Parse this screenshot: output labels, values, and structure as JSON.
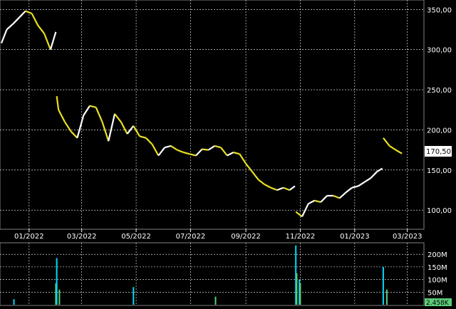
{
  "chart_data": [
    {
      "type": "line",
      "panel": "price",
      "title": "",
      "xlabel": "",
      "ylabel": "",
      "style": "candlestick",
      "colors": {
        "background": "#000000",
        "up": "#ffffff",
        "down": "#e8e020",
        "grid": "#ffffff",
        "axis": "#ffffff"
      },
      "xlim": [
        "2021-12-01",
        "2023-03-18"
      ],
      "ylim": [
        78,
        360
      ],
      "x_ticks": [
        "01/2022",
        "03/2022",
        "05/2022",
        "07/2022",
        "09/2022",
        "11/2022",
        "01/2023",
        "03/2023"
      ],
      "y_ticks": [
        "350,00",
        "300,00",
        "250,00",
        "200,00",
        "150,00",
        "100,00"
      ],
      "last_price": "170,50",
      "grid": true,
      "series": [
        {
          "x": [
            "2021-12-01",
            "2021-12-07",
            "2021-12-14",
            "2021-12-21",
            "2021-12-28",
            "2022-01-04",
            "2022-01-11",
            "2022-01-18",
            "2022-01-25",
            "2022-01-31",
            "2022-02-01",
            "2022-02-03",
            "2022-02-10",
            "2022-02-17",
            "2022-02-24",
            "2022-03-03",
            "2022-03-10",
            "2022-03-17",
            "2022-03-24",
            "2022-03-31",
            "2022-04-07",
            "2022-04-14",
            "2022-04-21",
            "2022-04-28",
            "2022-05-05",
            "2022-05-12",
            "2022-05-19",
            "2022-05-26",
            "2022-06-02",
            "2022-06-09",
            "2022-06-16",
            "2022-06-23",
            "2022-06-30",
            "2022-07-07",
            "2022-07-14",
            "2022-07-21",
            "2022-07-28",
            "2022-08-04",
            "2022-08-11",
            "2022-08-18",
            "2022-08-25",
            "2022-09-01",
            "2022-09-08",
            "2022-09-15",
            "2022-09-22",
            "2022-09-29",
            "2022-10-06",
            "2022-10-13",
            "2022-10-20",
            "2022-10-26",
            "2022-10-27",
            "2022-11-03",
            "2022-11-10",
            "2022-11-17",
            "2022-11-24",
            "2022-12-01",
            "2022-12-08",
            "2022-12-15",
            "2022-12-22",
            "2022-12-29",
            "2023-01-05",
            "2023-01-12",
            "2023-01-19",
            "2023-01-26",
            "2023-02-01",
            "2023-02-02",
            "2023-02-09",
            "2023-02-16",
            "2023-02-23"
          ],
          "values": [
            308,
            325,
            332,
            340,
            348,
            345,
            330,
            320,
            300,
            322,
            242,
            225,
            210,
            198,
            190,
            218,
            230,
            228,
            210,
            186,
            220,
            210,
            195,
            205,
            192,
            190,
            182,
            168,
            178,
            180,
            175,
            172,
            170,
            168,
            176,
            175,
            180,
            178,
            168,
            172,
            170,
            158,
            148,
            138,
            132,
            128,
            125,
            128,
            125,
            130,
            98,
            92,
            108,
            112,
            110,
            118,
            118,
            115,
            122,
            128,
            130,
            135,
            140,
            148,
            152,
            190,
            180,
            175,
            170.5
          ]
        }
      ]
    },
    {
      "type": "bar",
      "panel": "volume",
      "title": "",
      "xlabel": "",
      "ylabel": "",
      "colors": {
        "up": "#00d8f8",
        "down": "#5ccc78"
      },
      "xlim": [
        "2021-12-01",
        "2023-03-18"
      ],
      "ylim": [
        0,
        240
      ],
      "y_ticks": [
        "200M",
        "150M",
        "100M",
        "50M"
      ],
      "last_volume": "2.458K",
      "grid": true,
      "series": [
        {
          "x": [
            "2021-12-15",
            "2022-01-31",
            "2022-02-01",
            "2022-02-04",
            "2022-04-28",
            "2022-07-29",
            "2022-10-27",
            "2022-10-28",
            "2022-10-31",
            "2022-11-01",
            "2023-02-02",
            "2023-02-06"
          ],
          "values": [
            22,
            85,
            185,
            60,
            70,
            32,
            235,
            125,
            100,
            85,
            150,
            60
          ]
        }
      ]
    }
  ]
}
